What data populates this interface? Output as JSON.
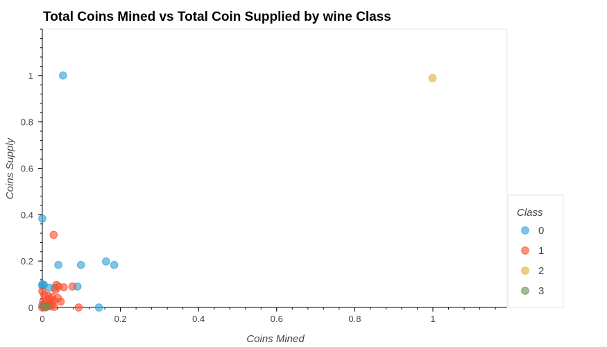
{
  "chart_data": {
    "type": "scatter",
    "title": "Total Coins Mined vs Total Coin Supplied by wine Class",
    "xlabel": "Coins Mined",
    "ylabel": "Coins Supply",
    "xlim": [
      0,
      1.19
    ],
    "ylim": [
      0,
      1.2
    ],
    "x_ticks": [
      0,
      0.2,
      0.4,
      0.6,
      0.8,
      1
    ],
    "x_tick_labels": [
      "0",
      "0.2",
      "0.4",
      "0.6",
      "0.8",
      "1"
    ],
    "y_ticks": [
      0,
      0.2,
      0.4,
      0.6,
      0.8,
      1
    ],
    "y_tick_labels": [
      "0",
      "0.2",
      "0.4",
      "0.6",
      "0.8",
      "1"
    ],
    "grid": false,
    "legend": {
      "title": "Class",
      "placement": "right"
    },
    "series": [
      {
        "name": "0",
        "color": "#30a2da",
        "points": [
          [
            0.053,
            1.0
          ],
          [
            0.0,
            0.383
          ],
          [
            0.041,
            0.183
          ],
          [
            0.099,
            0.183
          ],
          [
            0.163,
            0.198
          ],
          [
            0.184,
            0.183
          ],
          [
            0.0,
            0.1
          ],
          [
            0.0,
            0.093
          ],
          [
            0.004,
            0.098
          ],
          [
            0.018,
            0.085
          ],
          [
            0.032,
            0.085
          ],
          [
            0.09,
            0.09
          ],
          [
            0.145,
            0.0
          ],
          [
            0.0,
            0.01
          ],
          [
            0.003,
            0.004
          ]
        ]
      },
      {
        "name": "1",
        "color": "#fc4f30",
        "points": [
          [
            0.029,
            0.313
          ],
          [
            0.036,
            0.097
          ],
          [
            0.042,
            0.09
          ],
          [
            0.055,
            0.087
          ],
          [
            0.077,
            0.09
          ],
          [
            0.034,
            0.075
          ],
          [
            0.0,
            0.07
          ],
          [
            0.005,
            0.055
          ],
          [
            0.015,
            0.05
          ],
          [
            0.025,
            0.045
          ],
          [
            0.04,
            0.04
          ],
          [
            0.02,
            0.035
          ],
          [
            0.03,
            0.03
          ],
          [
            0.01,
            0.03
          ],
          [
            0.047,
            0.025
          ],
          [
            0.018,
            0.02
          ],
          [
            0.025,
            0.015
          ],
          [
            0.005,
            0.015
          ],
          [
            0.012,
            0.008
          ],
          [
            0.022,
            0.005
          ],
          [
            0.093,
            0.0
          ],
          [
            0.0,
            0.0
          ],
          [
            0.008,
            0.0
          ],
          [
            0.03,
            0.002
          ],
          [
            0.002,
            0.025
          ],
          [
            0.015,
            0.01
          ]
        ]
      },
      {
        "name": "2",
        "color": "#e5ae38",
        "points": [
          [
            0.999,
            0.989
          ]
        ]
      },
      {
        "name": "3",
        "color": "#6d904f",
        "points": [
          [
            0.005,
            0.005
          ],
          [
            0.012,
            0.003
          ]
        ]
      }
    ]
  }
}
